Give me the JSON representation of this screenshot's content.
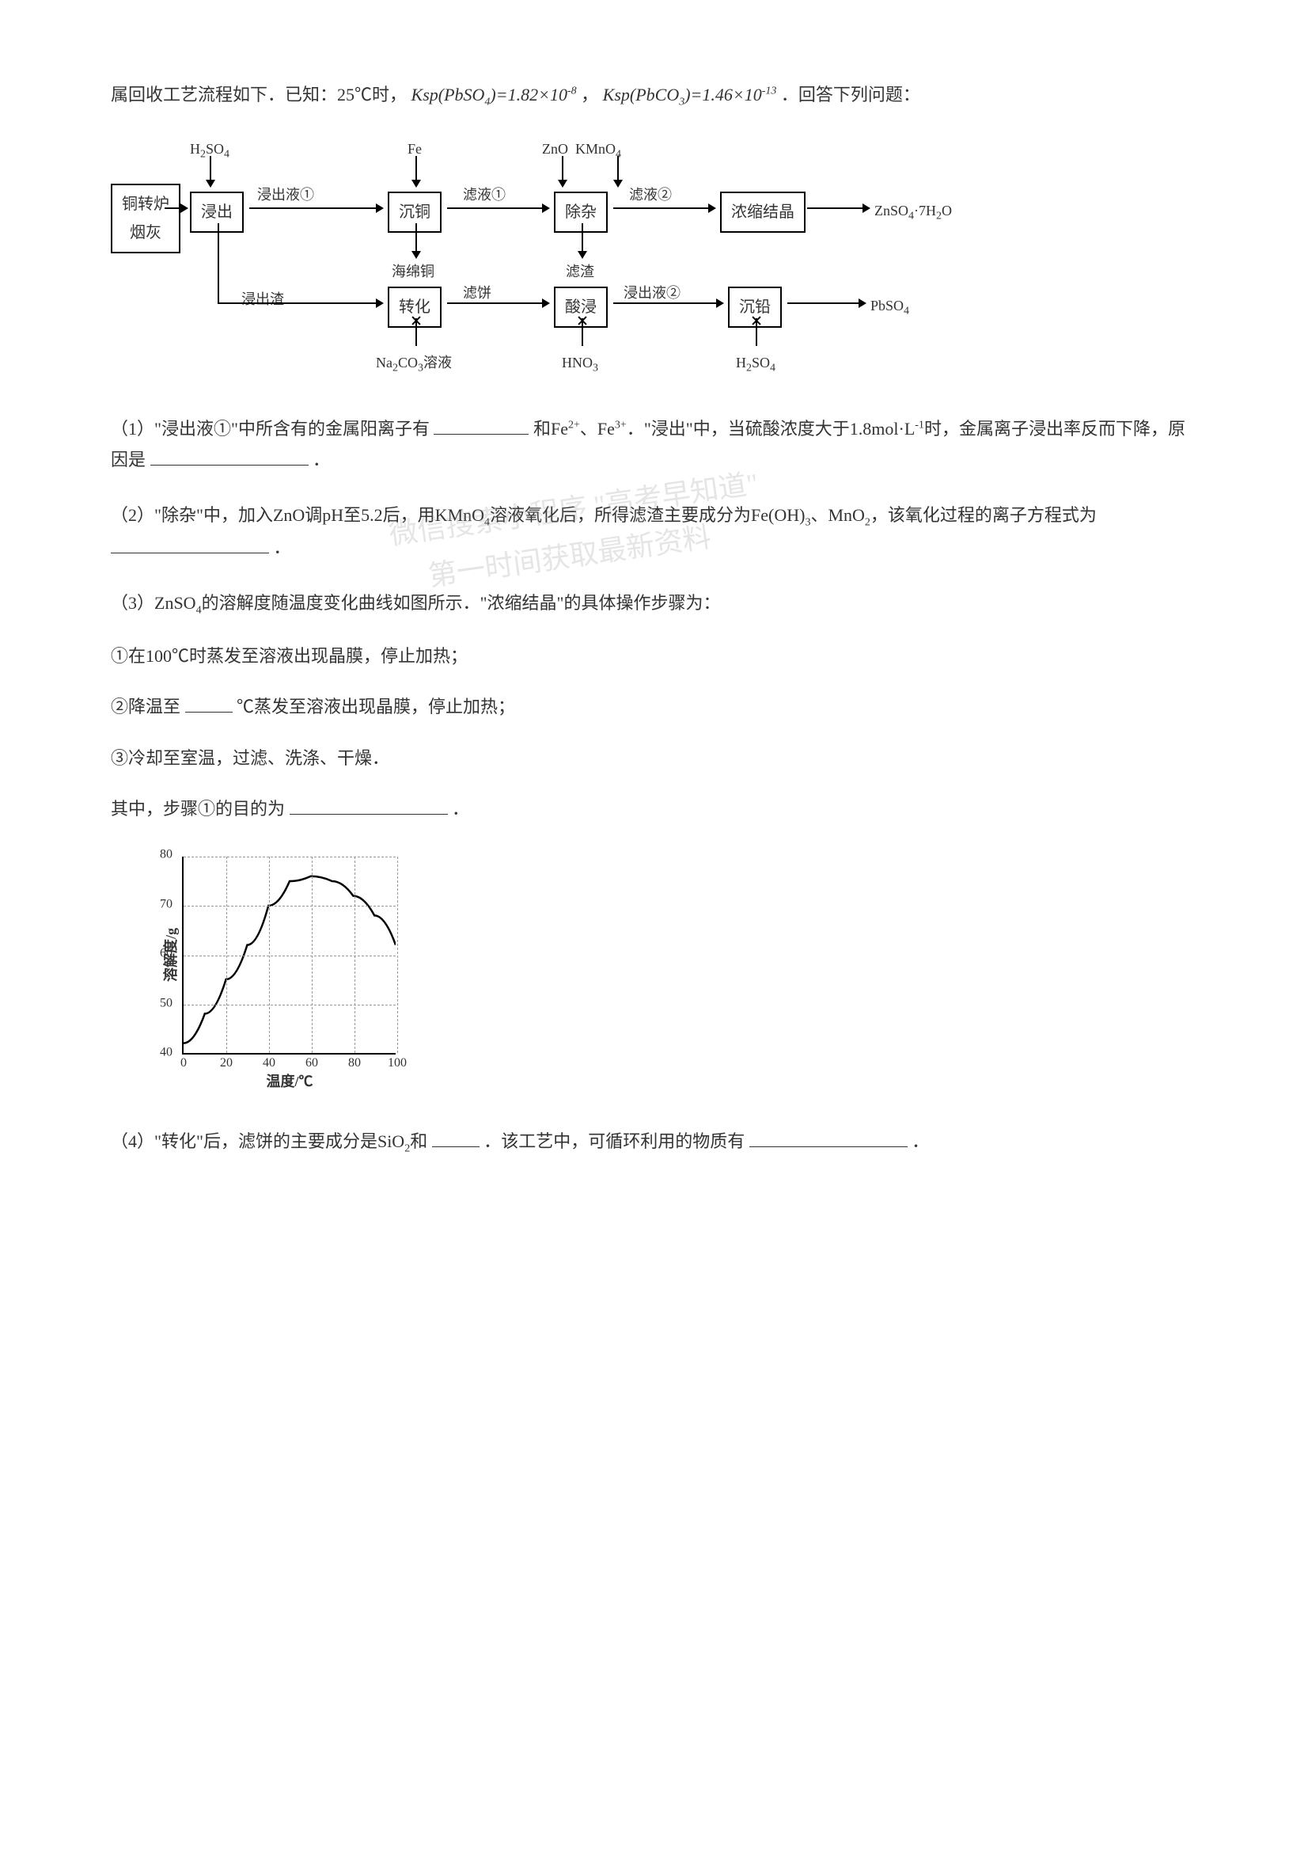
{
  "intro": {
    "text1": "属回收工艺流程如下．已知：25℃时，",
    "ksp1": "Ksp(PbSO₄)=1.82×10⁻⁸",
    "text2": "，",
    "ksp2": "Ksp(PbCO₃)=1.46×10⁻¹³",
    "text3": "．回答下列问题："
  },
  "flowchart": {
    "inputs": {
      "h2so4": "H₂SO₄",
      "fe": "Fe",
      "zno_kmno4": "ZnO  KMnO₄"
    },
    "boxes": {
      "material": "铜转炉\n烟灰",
      "jinchu": "浸出",
      "chentong": "沉铜",
      "chuza": "除杂",
      "nongsuo": "浓缩结晶",
      "zhuanhua": "转化",
      "suanqin": "酸浸",
      "chenqian": "沉铅"
    },
    "labels": {
      "jinchuye1": "浸出液①",
      "lvye1": "滤液①",
      "lvye2": "滤液②",
      "haimiantong": "海绵铜",
      "lvzha": "滤渣",
      "jinchuzha": "浸出渣",
      "lvbing": "滤饼",
      "jinchuye2": "浸出液②",
      "na2co3": "Na₂CO₃溶液",
      "hno3": "HNO₃",
      "h2so4_2": "H₂SO₄",
      "znso4_product": "ZnSO₄·7H₂O",
      "pbso4_product": "PbSO₄"
    }
  },
  "q1": {
    "prefix": "（1）\"浸出液①\"中所含有的金属阳离子有",
    "mid": "和Fe²⁺、Fe³⁺．\"浸出\"中，当硫酸浓度大于1.8mol·L⁻¹时，金属离子浸出率反而下降，原因是",
    "suffix": "．"
  },
  "q2": {
    "prefix": "（2）\"除杂\"中，加入ZnO调pH至5.2后，用KMnO₄溶液氧化后，所得滤渣主要成分为Fe(OH)₃、MnO₂，该氧化过程的离子方程式为",
    "suffix": "．"
  },
  "q3": {
    "intro": "（3）ZnSO₄的溶解度随温度变化曲线如图所示．\"浓缩结晶\"的具体操作步骤为：",
    "step1": "①在100℃时蒸发至溶液出现晶膜，停止加热；",
    "step2a": "②降温至",
    "step2b": "℃蒸发至溶液出现晶膜，停止加热；",
    "step3": "③冷却至室温，过滤、洗涤、干燥．",
    "reason_prefix": "其中，步骤①的目的为",
    "reason_suffix": "．"
  },
  "chart": {
    "type": "line",
    "xlabel": "温度/℃",
    "ylabel": "溶解度/g",
    "xlim": [
      0,
      100
    ],
    "ylim": [
      40,
      80
    ],
    "xtick_step": 20,
    "ytick_step": 10,
    "xticks": [
      0,
      20,
      40,
      60,
      80,
      100
    ],
    "yticks": [
      40,
      50,
      60,
      70,
      80
    ],
    "data_points": [
      {
        "x": 0,
        "y": 42
      },
      {
        "x": 10,
        "y": 48
      },
      {
        "x": 20,
        "y": 55
      },
      {
        "x": 30,
        "y": 62
      },
      {
        "x": 40,
        "y": 70
      },
      {
        "x": 50,
        "y": 75
      },
      {
        "x": 60,
        "y": 76
      },
      {
        "x": 70,
        "y": 75
      },
      {
        "x": 80,
        "y": 72
      },
      {
        "x": 90,
        "y": 68
      },
      {
        "x": 100,
        "y": 62
      }
    ],
    "line_color": "#000000",
    "line_width": 2,
    "grid_color": "#999999",
    "background_color": "#ffffff",
    "label_fontsize": 18,
    "tick_fontsize": 16
  },
  "q4": {
    "prefix": "（4）\"转化\"后，滤饼的主要成分是SiO₂和",
    "mid": "．该工艺中，可循环利用的物质有",
    "suffix": "．"
  },
  "watermarks": {
    "wm1": "微信搜索小程序 \"高考早知道\"",
    "wm2": "第一时间获取最新资料"
  }
}
